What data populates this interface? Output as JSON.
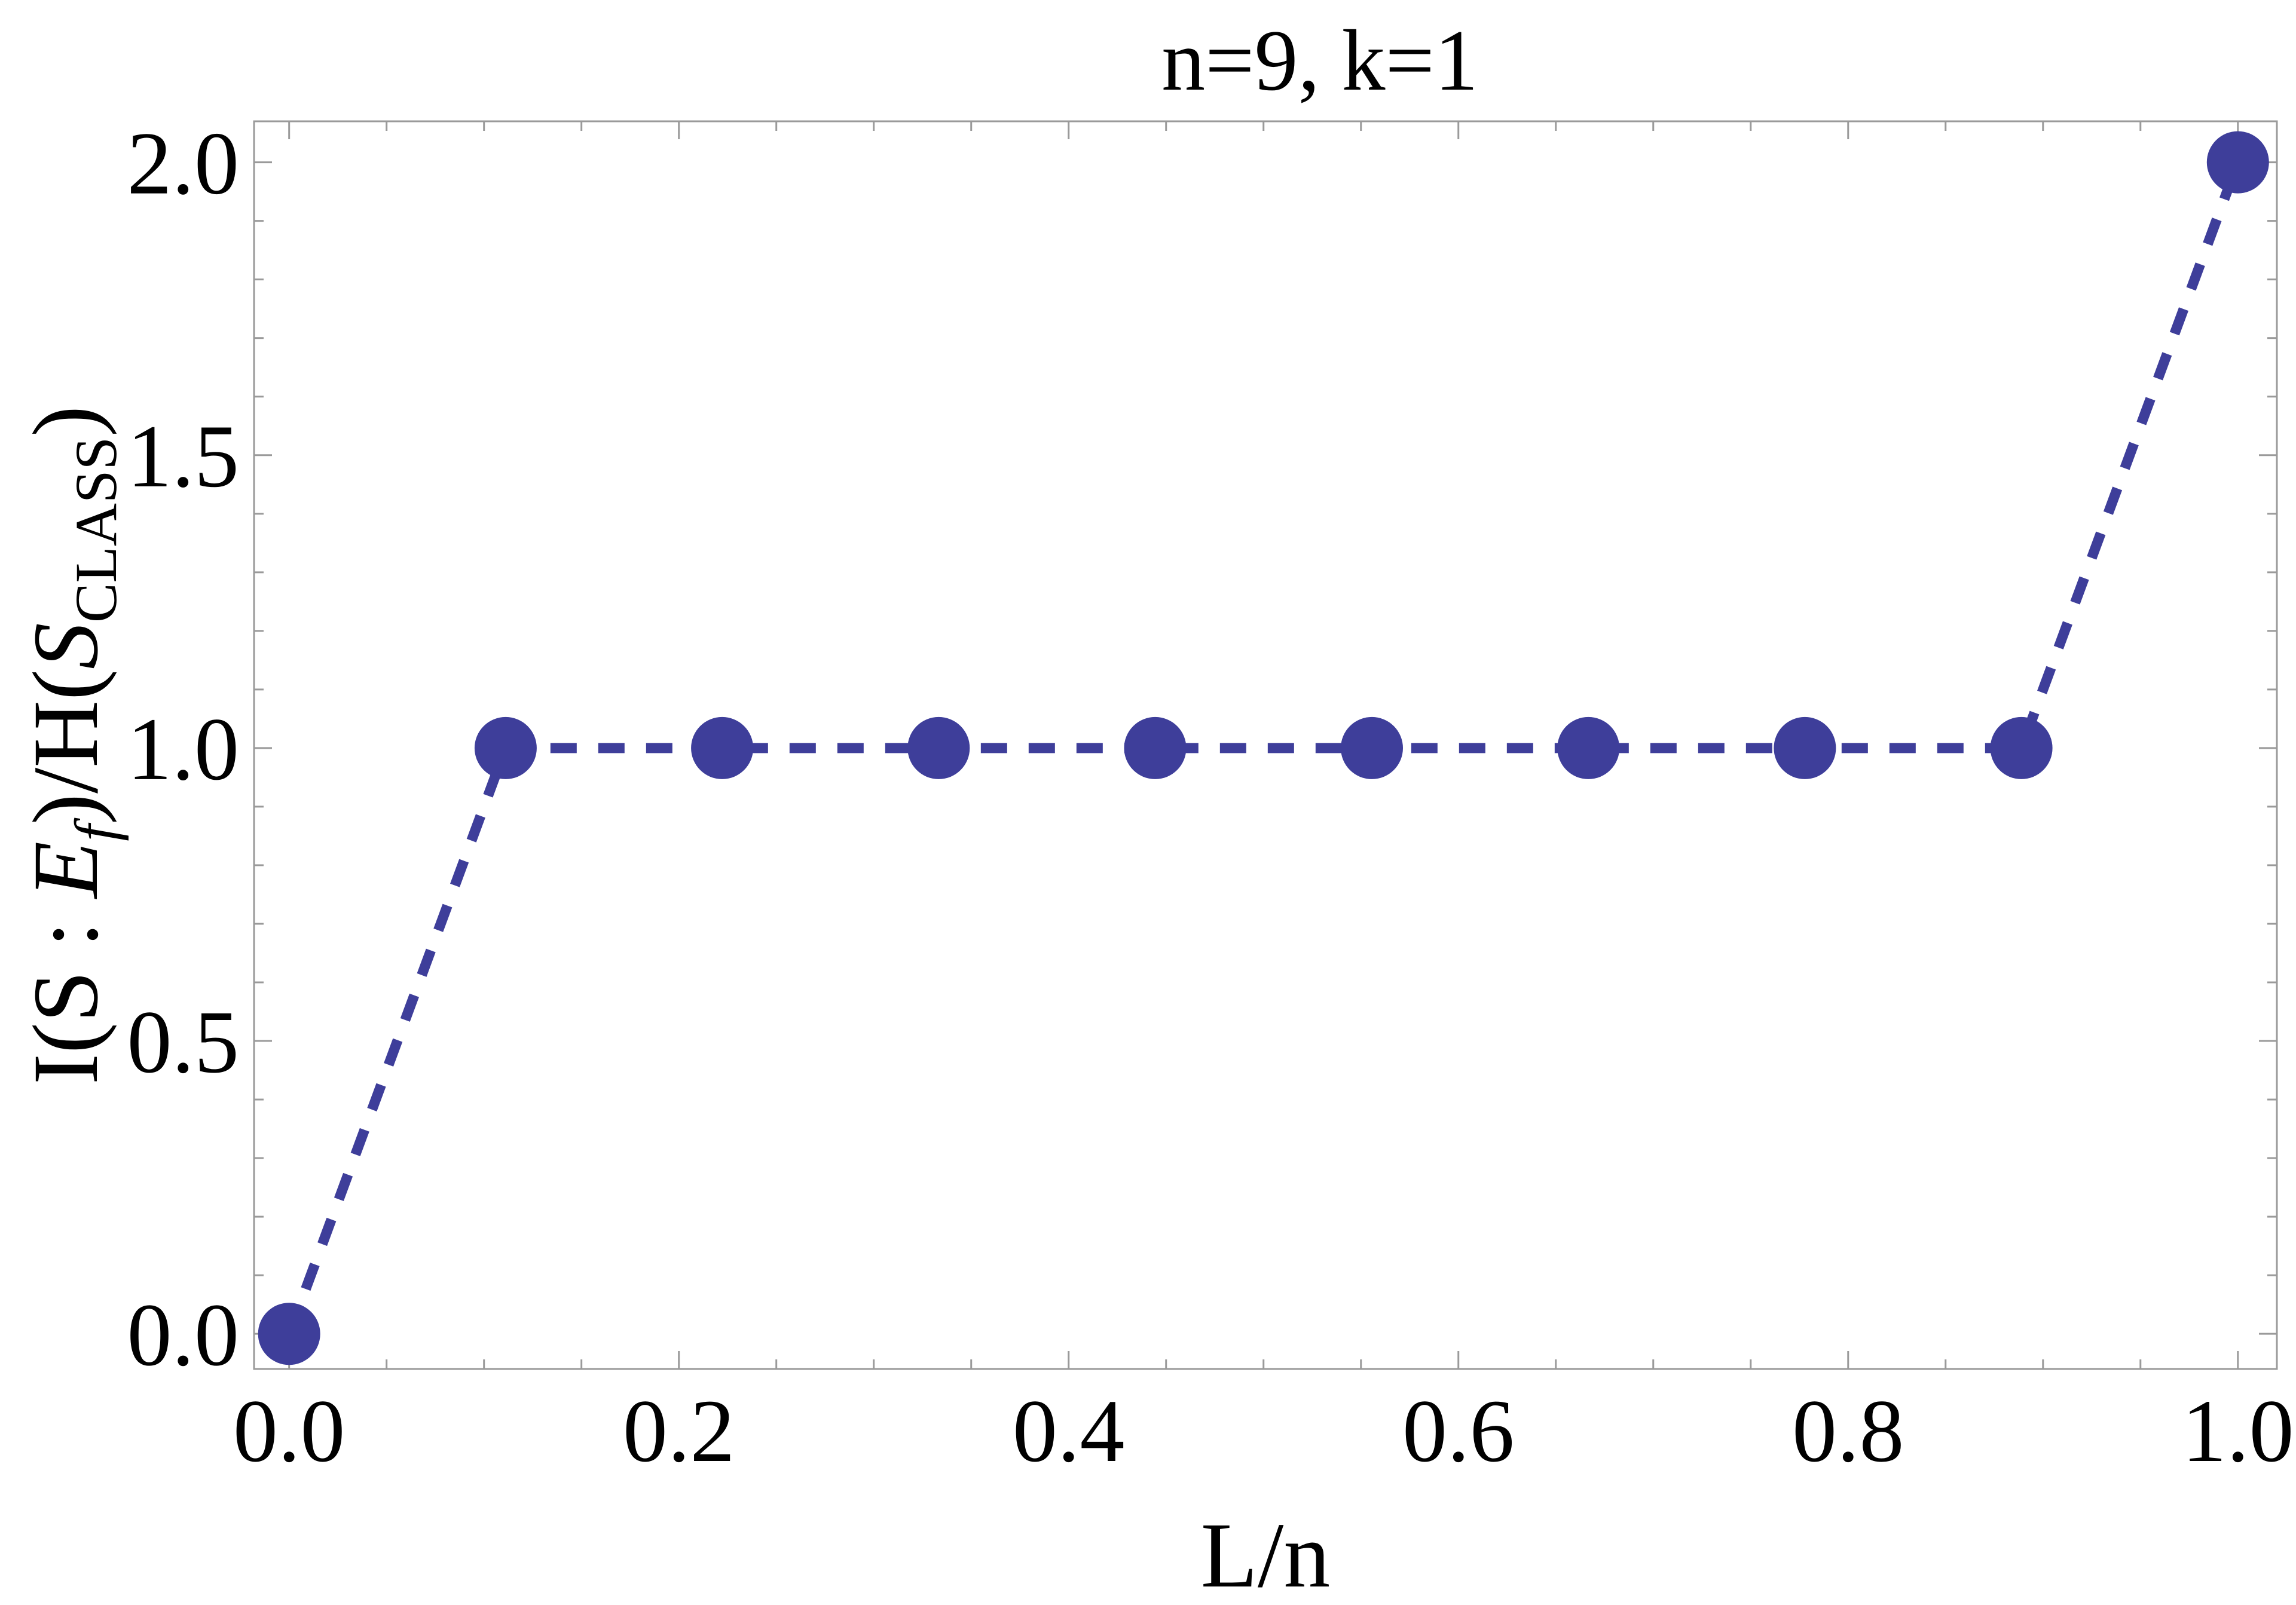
{
  "chart_data": {
    "type": "line",
    "title": "n=9, k=1",
    "xlabel": "L/n",
    "ylabel": {
      "prefix": "I(S : ",
      "var": "E",
      "var_sub": "f",
      "middle": ")/H(",
      "var2": "S",
      "var2_sub": "CLASS",
      "suffix": ")"
    },
    "xlim": [
      -0.018,
      1.02
    ],
    "ylim": [
      -0.06,
      2.07
    ],
    "xticks": [
      0.0,
      0.2,
      0.4,
      0.6,
      0.8,
      1.0
    ],
    "xtick_labels": [
      "0.0",
      "0.2",
      "0.4",
      "0.6",
      "0.8",
      "1.0"
    ],
    "yticks": [
      0.0,
      0.5,
      1.0,
      1.5,
      2.0
    ],
    "ytick_labels": [
      "0.0",
      "0.5",
      "1.0",
      "1.5",
      "2.0"
    ],
    "grid": false,
    "line_style": "dashed",
    "marker": "circle",
    "color": "#3e3e9a",
    "series": [
      {
        "x": [
          0.0,
          0.1111,
          0.2222,
          0.3333,
          0.4444,
          0.5556,
          0.6667,
          0.7778,
          0.8889,
          1.0
        ],
        "values": [
          0.0,
          1.0,
          1.0,
          1.0,
          1.0,
          1.0,
          1.0,
          1.0,
          1.0,
          2.0
        ]
      }
    ]
  }
}
